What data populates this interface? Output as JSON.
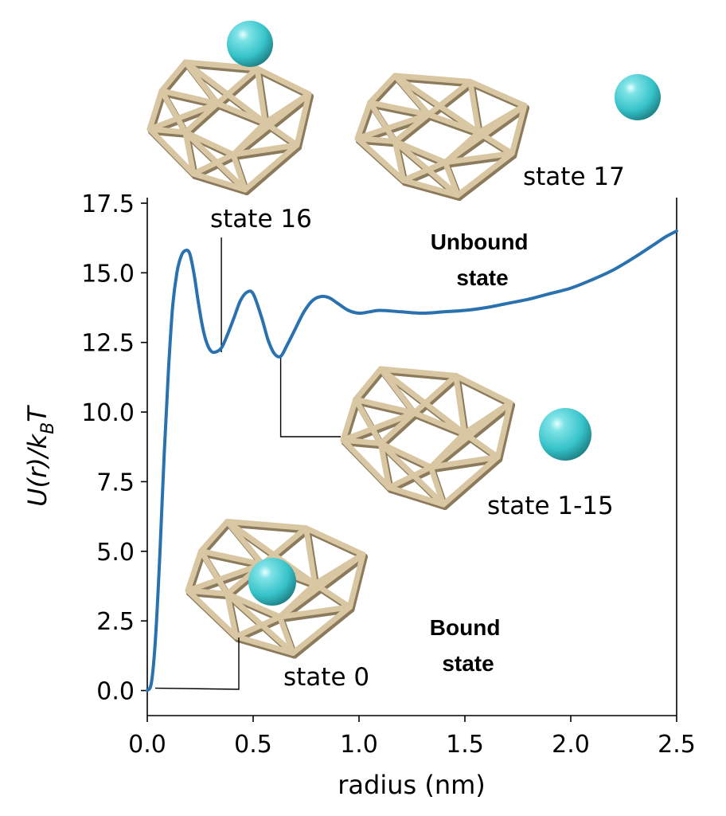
{
  "chart_data": {
    "type": "line",
    "xlabel": "radius (nm)",
    "ylabel_parts": [
      "U(r)/k",
      "B",
      "T"
    ],
    "xlim": [
      0.0,
      2.5
    ],
    "ylim": [
      -0.9,
      17.7
    ],
    "x_ticks": [
      0.0,
      0.5,
      1.0,
      1.5,
      2.0,
      2.5
    ],
    "x_tick_labels": [
      "0.0",
      "0.5",
      "1.0",
      "1.5",
      "2.0",
      "2.5"
    ],
    "y_ticks": [
      0.0,
      2.5,
      5.0,
      7.5,
      10.0,
      12.5,
      15.0,
      17.5
    ],
    "y_tick_labels": [
      "0.0",
      "2.5",
      "5.0",
      "7.5",
      "10.0",
      "12.5",
      "15.0",
      "17.5"
    ],
    "grid": false,
    "spines": [
      "left",
      "bottom",
      "right"
    ],
    "series": [
      {
        "color": "#2a71b0",
        "x": [
          0.0,
          0.02,
          0.04,
          0.06,
          0.08,
          0.1,
          0.12,
          0.14,
          0.16,
          0.18,
          0.2,
          0.22,
          0.24,
          0.26,
          0.28,
          0.3,
          0.32,
          0.35,
          0.38,
          0.41,
          0.44,
          0.47,
          0.5,
          0.54,
          0.57,
          0.6,
          0.63,
          0.66,
          0.7,
          0.74,
          0.78,
          0.82,
          0.86,
          0.9,
          0.95,
          1.0,
          1.05,
          1.1,
          1.2,
          1.3,
          1.4,
          1.5,
          1.6,
          1.7,
          1.8,
          1.9,
          2.0,
          2.1,
          2.2,
          2.3,
          2.4,
          2.45,
          2.5
        ],
        "y": [
          0.0,
          0.3,
          2.0,
          5.0,
          8.5,
          11.5,
          13.8,
          15.0,
          15.6,
          15.8,
          15.7,
          15.0,
          14.0,
          13.1,
          12.5,
          12.2,
          12.15,
          12.3,
          12.8,
          13.4,
          14.0,
          14.3,
          14.25,
          13.4,
          12.6,
          12.1,
          12.0,
          12.4,
          13.0,
          13.6,
          14.0,
          14.15,
          14.1,
          13.9,
          13.65,
          13.55,
          13.6,
          13.65,
          13.6,
          13.55,
          13.6,
          13.65,
          13.75,
          13.9,
          14.05,
          14.25,
          14.45,
          14.75,
          15.1,
          15.55,
          16.05,
          16.3,
          16.5
        ]
      }
    ],
    "annotations": [
      {
        "id": "state-16",
        "text": "state 16",
        "point": [
          0.35,
          12.15
        ]
      },
      {
        "id": "state-1-15",
        "text": "state 1-15",
        "point": [
          0.63,
          12.0
        ]
      },
      {
        "id": "state-0",
        "text": "state 0",
        "point": [
          0.0,
          0.0
        ]
      },
      {
        "id": "state-17",
        "text": "state 17"
      },
      {
        "id": "unbound-state",
        "lines": [
          "Unbound",
          "state"
        ]
      },
      {
        "id": "bound-state",
        "lines": [
          "Bound",
          "state"
        ]
      }
    ]
  },
  "colors": {
    "curve": "#2a71b0",
    "cage_frame": "#d8c7a2",
    "cage_shadow": "#8b7a5b",
    "ion": "#36c3c9"
  },
  "illustrations": [
    {
      "id": "cage-state-16",
      "ion_position": "above",
      "icon": "cage-with-ion-icon"
    },
    {
      "id": "cage-state-17",
      "ion_position": "far-right",
      "icon": "cage-with-ion-icon"
    },
    {
      "id": "cage-state-1-15",
      "ion_position": "right",
      "icon": "cage-with-ion-icon"
    },
    {
      "id": "cage-state-0",
      "ion_position": "inside",
      "icon": "cage-with-ion-icon"
    }
  ]
}
